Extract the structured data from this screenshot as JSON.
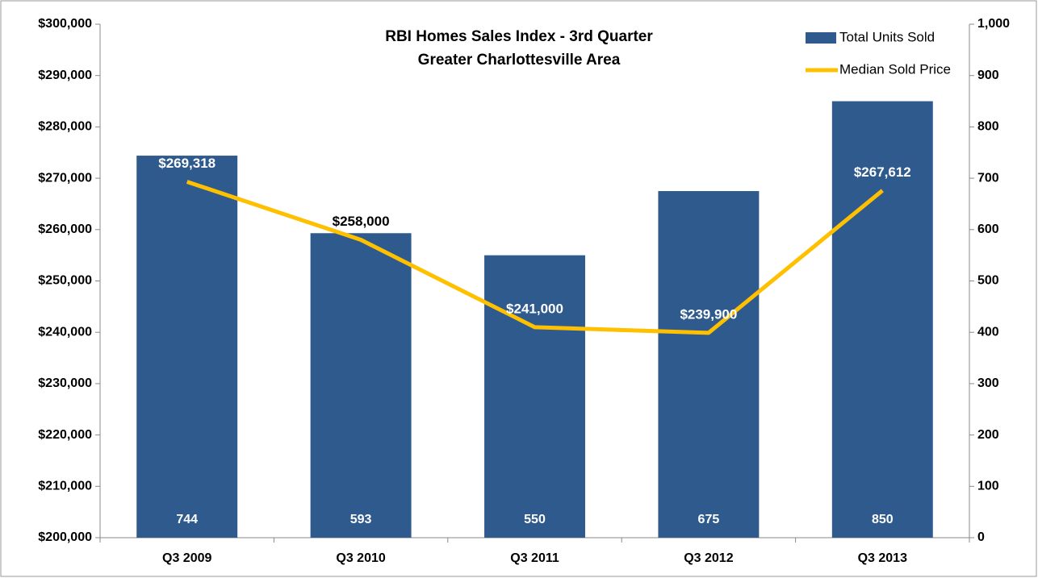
{
  "chart_data": {
    "type": "bar",
    "title": "RBI Homes Sales Index - 3rd Quarter",
    "subtitle": "Greater Charlottesville Area",
    "categories": [
      "Q3 2009",
      "Q3 2010",
      "Q3 2011",
      "Q3 2012",
      "Q3 2013"
    ],
    "series": [
      {
        "name": "Total Units Sold",
        "type": "bar",
        "axis": "y2",
        "color": "#2e5a8e",
        "values": [
          744,
          593,
          550,
          675,
          850
        ]
      },
      {
        "name": "Median Sold Price",
        "type": "line",
        "axis": "y",
        "color": "#ffc000",
        "values": [
          269318,
          258000,
          241000,
          239900,
          267612
        ],
        "value_labels": [
          "$269,318",
          "$258,000",
          "$241,000",
          "$239,900",
          "$267,612"
        ]
      }
    ],
    "ylim": [
      200000,
      300000
    ],
    "yticks": [
      {
        "value": 200000,
        "label": "$200,000"
      },
      {
        "value": 210000,
        "label": "$210,000"
      },
      {
        "value": 220000,
        "label": "$220,000"
      },
      {
        "value": 230000,
        "label": "$230,000"
      },
      {
        "value": 240000,
        "label": "$240,000"
      },
      {
        "value": 250000,
        "label": "$250,000"
      },
      {
        "value": 260000,
        "label": "$260,000"
      },
      {
        "value": 270000,
        "label": "$270,000"
      },
      {
        "value": 280000,
        "label": "$280,000"
      },
      {
        "value": 290000,
        "label": "$290,000"
      },
      {
        "value": 300000,
        "label": "$300,000"
      }
    ],
    "y2lim": [
      0,
      1000
    ],
    "y2ticks": [
      0,
      100,
      200,
      300,
      400,
      500,
      600,
      700,
      800,
      900,
      {
        "value": 1000,
        "label": "1,000"
      }
    ],
    "grid": false,
    "legend": "upper right"
  }
}
